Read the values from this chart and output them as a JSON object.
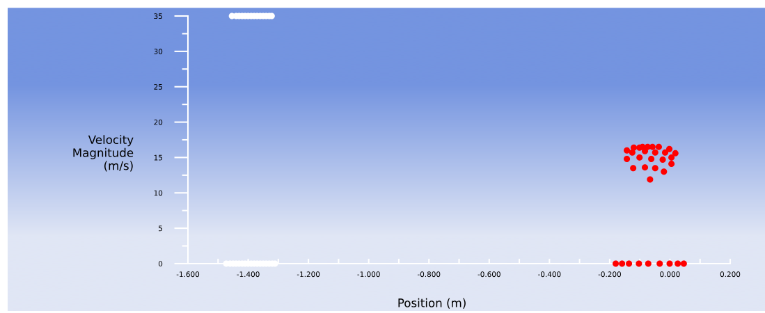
{
  "chart_data": {
    "type": "scatter",
    "xlabel": "Position (m)",
    "ylabel": "Velocity\nMagnitude\n(m/s)",
    "marker": "circle",
    "grid": false,
    "xlim": [
      -1.6,
      0.2
    ],
    "xticks": [
      {
        "value": -1.6,
        "label": "-1.600"
      },
      {
        "value": -1.4,
        "label": "-1.400"
      },
      {
        "value": -1.2,
        "label": "-1.200"
      },
      {
        "value": -1.0,
        "label": "-1.000"
      },
      {
        "value": -0.8,
        "label": "-0.800"
      },
      {
        "value": -0.6,
        "label": "-0.600"
      },
      {
        "value": -0.4,
        "label": "-0.400"
      },
      {
        "value": -0.2,
        "label": "-0.200"
      },
      {
        "value": 0,
        "label": "0.000"
      },
      {
        "value": 0.2,
        "label": "0.200"
      }
    ],
    "ylim": [
      0,
      35
    ],
    "yticks": [
      0,
      5,
      10,
      15,
      20,
      25,
      30,
      35
    ],
    "series": [
      {
        "color": "#ffffff",
        "x": [
          -1.454,
          -1.44,
          -1.43,
          -1.42,
          -1.41,
          -1.4,
          -1.39,
          -1.38,
          -1.37,
          -1.36,
          -1.35,
          -1.34,
          -1.33,
          -1.322,
          -1.473,
          -1.46,
          -1.45,
          -1.44,
          -1.43,
          -1.42,
          -1.41,
          -1.4,
          -1.39,
          -1.38,
          -1.37,
          -1.36,
          -1.35,
          -1.34,
          -1.33,
          -1.32,
          -1.311
        ],
        "values": [
          35,
          35,
          35,
          35,
          35,
          35,
          35,
          35,
          35,
          35,
          35,
          35,
          35,
          35,
          0,
          0,
          0,
          0,
          0,
          0,
          0,
          0,
          0,
          0,
          0,
          0,
          0,
          0,
          0,
          0,
          0
        ]
      },
      {
        "color": "#ff0000",
        "x": [
          -0.143,
          -0.12,
          -0.101,
          -0.091,
          -0.074,
          -0.058,
          -0.037,
          -0.125,
          -0.083,
          -0.049,
          -0.016,
          -0.002,
          0.018,
          -0.143,
          -0.101,
          -0.062,
          -0.024,
          0.005,
          0.005,
          -0.122,
          -0.083,
          -0.049,
          -0.02,
          -0.066,
          -0.18,
          -0.159,
          -0.136,
          -0.103,
          -0.072,
          -0.034,
          -0.001,
          0.026,
          0.046
        ],
        "values": [
          16.0,
          16.4,
          16.4,
          16.5,
          16.5,
          16.5,
          16.5,
          15.7,
          15.9,
          15.7,
          15.7,
          16.2,
          15.6,
          14.8,
          15.0,
          14.8,
          14.7,
          15.0,
          14.1,
          13.5,
          13.6,
          13.5,
          13.0,
          11.9,
          0,
          0,
          0,
          0,
          0,
          0,
          0,
          0,
          0
        ]
      }
    ]
  }
}
